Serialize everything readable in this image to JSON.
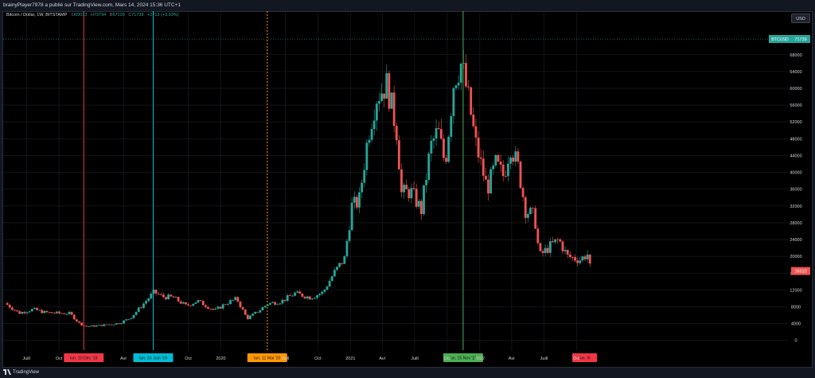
{
  "header": {
    "publish_line": "brainyPlayer7978 a publié sur TradingView.com, Mars 14, 2024 15:36 UTC+1"
  },
  "legend": {
    "symbol": "Bitcoin / Dollar, 1W, BITSTAMP",
    "o_key": "O",
    "o_val": "69013",
    "h_key": "H",
    "h_val": "73794",
    "b_key": "B",
    "b_val": "67120",
    "c_key": "C",
    "c_val": "71739",
    "change": "+2713 (+3.93%)"
  },
  "currency_button": "USD",
  "footer": {
    "brand": "TradingView",
    "logo_icon": "tradingview-logo-icon"
  },
  "colors": {
    "up": "#26a69a",
    "down": "#ef5350",
    "bg": "#000000",
    "grid": "#1c1f26",
    "axis_text": "#d1d4dc",
    "marker_red": "#f23645",
    "marker_teal": "#00bcd4",
    "marker_orange": "#ff9800",
    "marker_green": "#4caf50"
  },
  "chart_data": {
    "type": "candlestick",
    "interval": "1W",
    "exchange": "BITSTAMP",
    "yticks": [
      0,
      4000,
      8000,
      12000,
      16000,
      20000,
      24000,
      28000,
      32000,
      36000,
      40000,
      44000,
      48000,
      52000,
      56000,
      60000,
      64000,
      68000
    ],
    "ylim": [
      -1000,
      72500
    ],
    "xlim": [
      "2018-05-01",
      "2024-03-18"
    ],
    "xticks": [
      {
        "date": "2018-07-01",
        "label": "Juill"
      },
      {
        "date": "2018-10-01",
        "label": "Oct"
      },
      {
        "date": "2019-04-01",
        "label": "Avr"
      },
      {
        "date": "2019-10-01",
        "label": "Oct"
      },
      {
        "date": "2020-01-01",
        "label": "2020"
      },
      {
        "date": "2020-07-01",
        "label": "Juill"
      },
      {
        "date": "2020-10-01",
        "label": "Oct"
      },
      {
        "date": "2021-01-01",
        "label": "2021"
      },
      {
        "date": "2021-04-01",
        "label": "Avr"
      },
      {
        "date": "2021-07-01",
        "label": "Juill"
      },
      {
        "date": "2021-10-01",
        "label": "Oct"
      },
      {
        "date": "2022-01-01",
        "label": "2022"
      },
      {
        "date": "2022-04-01",
        "label": "Avr"
      },
      {
        "date": "2022-07-01",
        "label": "Juill"
      },
      {
        "date": "2022-10-01",
        "label": "Oct"
      }
    ],
    "price_labels": [
      {
        "text": "BTCUSD",
        "value": 71739,
        "kind": "symbol"
      },
      {
        "text": "71739",
        "value": 71739,
        "kind": "last"
      },
      {
        "text": "16510",
        "value": 16510,
        "kind": "current"
      }
    ],
    "markers": [
      {
        "date": "2018-12-10",
        "label": "lun. 10 Déc '18",
        "color": "#f23645",
        "style": "solid"
      },
      {
        "date": "2019-06-24",
        "label": "lun. 24 Juin '19",
        "color": "#00bcd4",
        "style": "solid"
      },
      {
        "date": "2020-05-11",
        "label": "lun. 11 Mai '20",
        "color": "#ff9800",
        "style": "dashed"
      },
      {
        "date": "2021-11-15",
        "label": "lun. 15 Nov '21",
        "color": "#4caf50",
        "style": "solid"
      },
      {
        "date": "2022-10-24",
        "label": "lun. 5l",
        "color": "#f23645",
        "style": "none"
      }
    ],
    "price_path": [
      {
        "date": "2018-05-01",
        "close": 8900
      },
      {
        "date": "2018-06-10",
        "close": 6500
      },
      {
        "date": "2018-07-20",
        "close": 7400
      },
      {
        "date": "2018-08-20",
        "close": 6700
      },
      {
        "date": "2018-09-20",
        "close": 6500
      },
      {
        "date": "2018-11-01",
        "close": 6400
      },
      {
        "date": "2018-11-25",
        "close": 4200
      },
      {
        "date": "2018-12-15",
        "close": 3300
      },
      {
        "date": "2019-01-20",
        "close": 3500
      },
      {
        "date": "2019-02-20",
        "close": 3800
      },
      {
        "date": "2019-03-20",
        "close": 4100
      },
      {
        "date": "2019-04-20",
        "close": 5300
      },
      {
        "date": "2019-05-20",
        "close": 8000
      },
      {
        "date": "2019-06-26",
        "close": 11500
      },
      {
        "date": "2019-07-20",
        "close": 10400
      },
      {
        "date": "2019-08-20",
        "close": 10200
      },
      {
        "date": "2019-09-25",
        "close": 8200
      },
      {
        "date": "2019-10-27",
        "close": 9400
      },
      {
        "date": "2019-12-15",
        "close": 7100
      },
      {
        "date": "2020-01-15",
        "close": 8800
      },
      {
        "date": "2020-02-15",
        "close": 9900
      },
      {
        "date": "2020-03-15",
        "close": 5200
      },
      {
        "date": "2020-04-20",
        "close": 7200
      },
      {
        "date": "2020-05-11",
        "close": 8700
      },
      {
        "date": "2020-06-20",
        "close": 9300
      },
      {
        "date": "2020-07-28",
        "close": 11200
      },
      {
        "date": "2020-09-10",
        "close": 10200
      },
      {
        "date": "2020-10-15",
        "close": 11400
      },
      {
        "date": "2020-11-15",
        "close": 16000
      },
      {
        "date": "2020-12-15",
        "close": 19500
      },
      {
        "date": "2021-01-05",
        "close": 32000
      },
      {
        "date": "2021-01-25",
        "close": 33000
      },
      {
        "date": "2021-02-20",
        "close": 49000
      },
      {
        "date": "2021-03-15",
        "close": 58000
      },
      {
        "date": "2021-04-14",
        "close": 61000
      },
      {
        "date": "2021-05-12",
        "close": 49500
      },
      {
        "date": "2021-05-25",
        "close": 35000
      },
      {
        "date": "2021-06-20",
        "close": 35500
      },
      {
        "date": "2021-07-20",
        "close": 31000
      },
      {
        "date": "2021-08-15",
        "close": 46000
      },
      {
        "date": "2021-09-05",
        "close": 50000
      },
      {
        "date": "2021-09-25",
        "close": 42000
      },
      {
        "date": "2021-10-20",
        "close": 62000
      },
      {
        "date": "2021-11-10",
        "close": 66000
      },
      {
        "date": "2021-12-01",
        "close": 57000
      },
      {
        "date": "2021-12-20",
        "close": 47000
      },
      {
        "date": "2022-01-22",
        "close": 36000
      },
      {
        "date": "2022-02-15",
        "close": 42000
      },
      {
        "date": "2022-03-10",
        "close": 39000
      },
      {
        "date": "2022-03-28",
        "close": 46500
      },
      {
        "date": "2022-04-20",
        "close": 41000
      },
      {
        "date": "2022-05-10",
        "close": 31000
      },
      {
        "date": "2022-06-05",
        "close": 29500
      },
      {
        "date": "2022-06-18",
        "close": 20000
      },
      {
        "date": "2022-07-20",
        "close": 22500
      },
      {
        "date": "2022-08-12",
        "close": 24000
      },
      {
        "date": "2022-09-05",
        "close": 20000
      },
      {
        "date": "2022-10-10",
        "close": 19200
      },
      {
        "date": "2022-11-01",
        "close": 20500
      },
      {
        "date": "2022-11-10",
        "close": 16510
      }
    ]
  }
}
